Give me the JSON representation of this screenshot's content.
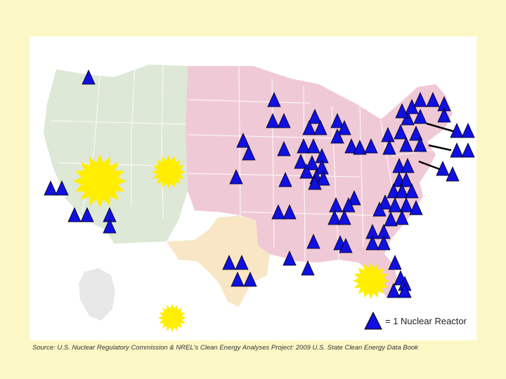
{
  "legend": {
    "label": "= 1 Nuclear Reactor",
    "symbol": "triangle-icon",
    "color": "#1010e0"
  },
  "source": "Source: U.S. Nuclear Regulatory Commission & NREL's Clean Energy Analyses Project: 2009 U.S. State Clean Energy Data Book",
  "colors": {
    "background": "#fbf8c6",
    "reactor_marker": "#1010e0",
    "sun_marker": "#ffee00",
    "region_west": "#dde8d6",
    "region_central_east": "#f0c9d6",
    "region_texas": "#f8e6c4",
    "other_land": "#e8e8e8"
  },
  "markers": {
    "reactor_count": 94,
    "sun_icon": "sun-icon",
    "reactor_icon": "triangle-icon"
  }
}
